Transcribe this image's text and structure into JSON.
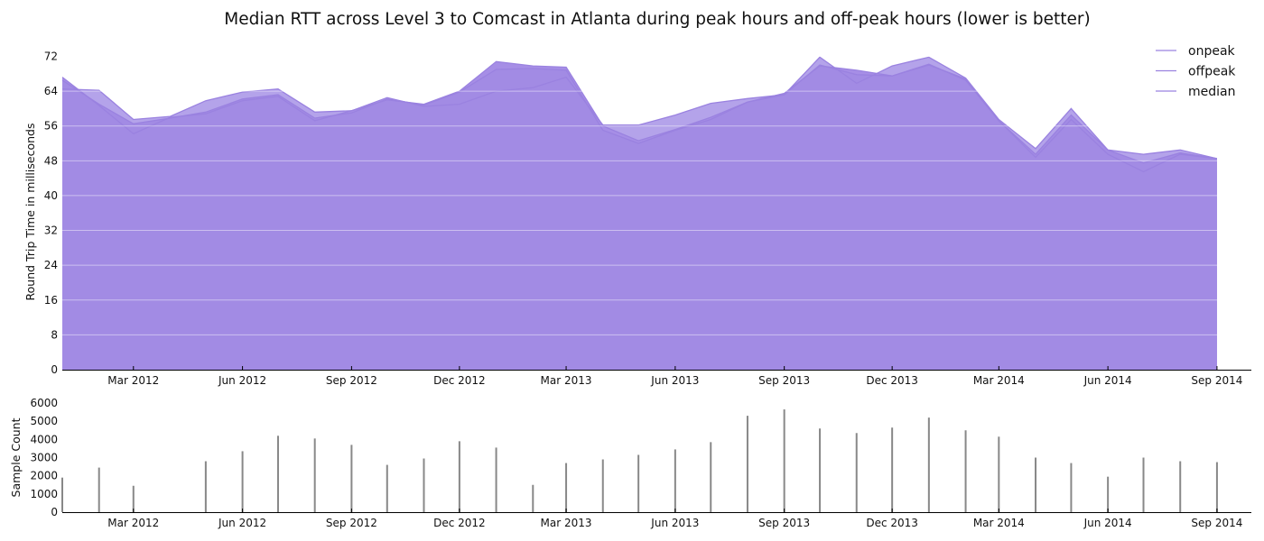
{
  "chart_data": [
    {
      "type": "area",
      "title": "Median RTT across Level 3 to Comcast in Atlanta during peak hours and off-peak hours (lower is better)",
      "ylabel": "Round Trip Time in milliseconds",
      "xlabel": "",
      "ylim": [
        0,
        75
      ],
      "yticks": [
        0,
        8,
        16,
        24,
        32,
        40,
        48,
        56,
        64,
        72
      ],
      "xlim": [
        "2012-01-01",
        "2014-09-30"
      ],
      "xticks": [
        {
          "date": "2012-03-01",
          "label": "Mar 2012"
        },
        {
          "date": "2012-06-01",
          "label": "Jun 2012"
        },
        {
          "date": "2012-09-01",
          "label": "Sep 2012"
        },
        {
          "date": "2012-12-01",
          "label": "Dec 2012"
        },
        {
          "date": "2013-03-01",
          "label": "Mar 2013"
        },
        {
          "date": "2013-06-01",
          "label": "Jun 2013"
        },
        {
          "date": "2013-09-01",
          "label": "Sep 2013"
        },
        {
          "date": "2013-12-01",
          "label": "Dec 2013"
        },
        {
          "date": "2014-03-01",
          "label": "Mar 2014"
        },
        {
          "date": "2014-06-01",
          "label": "Jun 2014"
        },
        {
          "date": "2014-09-01",
          "label": "Sep 2014"
        }
      ],
      "legend": {
        "position": "top-right",
        "entries": [
          "onpeak",
          "offpeak",
          "median"
        ]
      },
      "grid": {
        "y": true,
        "x": false
      },
      "colors": {
        "onpeak": "#b4a3ea",
        "offpeak": "#a68ee6",
        "median": "#a28be4",
        "line": "#9a82e0"
      },
      "x": [
        "2012-01-01",
        "2012-02-01",
        "2012-03-01",
        "2012-04-01",
        "2012-05-01",
        "2012-06-01",
        "2012-07-01",
        "2012-08-01",
        "2012-09-01",
        "2012-10-01",
        "2012-11-01",
        "2012-12-01",
        "2013-01-01",
        "2013-02-01",
        "2013-03-01",
        "2013-04-01",
        "2013-05-01",
        "2013-06-01",
        "2013-07-01",
        "2013-08-01",
        "2013-09-01",
        "2013-10-01",
        "2013-11-01",
        "2013-12-01",
        "2014-01-01",
        "2014-02-01",
        "2014-03-01",
        "2014-04-01",
        "2014-05-01",
        "2014-06-01",
        "2014-07-01",
        "2014-08-01",
        "2014-09-01"
      ],
      "series": [
        {
          "name": "onpeak",
          "values": [
            64.5,
            64.2,
            57.5,
            58.2,
            61.8,
            63.8,
            64.5,
            59.2,
            59.5,
            62.5,
            60.5,
            61.0,
            64.0,
            64.8,
            67.2,
            56.2,
            56.2,
            58.5,
            61.2,
            62.3,
            63.2,
            71.8,
            65.8,
            69.8,
            71.8,
            67.0,
            57.5,
            50.8,
            60.0,
            50.5,
            49.5,
            50.5,
            48.5
          ]
        },
        {
          "name": "offpeak",
          "values": [
            67.2,
            60.7,
            54.2,
            58.0,
            58.8,
            61.8,
            62.8,
            57.2,
            59.5,
            62.0,
            61.0,
            64.0,
            70.8,
            69.8,
            69.5,
            56.0,
            52.6,
            55.2,
            58.0,
            61.5,
            63.5,
            69.8,
            68.8,
            67.5,
            70.2,
            66.5,
            57.2,
            48.8,
            57.5,
            49.5,
            45.5,
            49.5,
            48.5
          ]
        },
        {
          "name": "median",
          "values": [
            66.5,
            61.0,
            56.5,
            57.8,
            59.2,
            62.2,
            63.2,
            57.8,
            59.0,
            62.2,
            60.8,
            63.8,
            69.0,
            69.2,
            68.8,
            55.0,
            52.0,
            55.0,
            57.5,
            61.5,
            63.2,
            70.0,
            67.8,
            67.5,
            70.0,
            66.8,
            57.2,
            49.5,
            58.5,
            50.5,
            47.5,
            49.8,
            48.5
          ]
        }
      ]
    },
    {
      "type": "bar",
      "ylabel": "Sample Count",
      "xlabel": "",
      "ylim": [
        0,
        6000
      ],
      "yticks": [
        0,
        1000,
        2000,
        3000,
        4000,
        5000,
        6000
      ],
      "xlim": [
        "2012-01-01",
        "2014-09-30"
      ],
      "xticks": [
        {
          "date": "2012-03-01",
          "label": "Mar 2012"
        },
        {
          "date": "2012-06-01",
          "label": "Jun 2012"
        },
        {
          "date": "2012-09-01",
          "label": "Sep 2012"
        },
        {
          "date": "2012-12-01",
          "label": "Dec 2012"
        },
        {
          "date": "2013-03-01",
          "label": "Mar 2013"
        },
        {
          "date": "2013-06-01",
          "label": "Jun 2013"
        },
        {
          "date": "2013-09-01",
          "label": "Sep 2013"
        },
        {
          "date": "2013-12-01",
          "label": "Dec 2013"
        },
        {
          "date": "2014-03-01",
          "label": "Mar 2014"
        },
        {
          "date": "2014-06-01",
          "label": "Jun 2014"
        },
        {
          "date": "2014-09-01",
          "label": "Sep 2014"
        }
      ],
      "colors": {
        "bar": "#888888"
      },
      "x": [
        "2012-01-01",
        "2012-02-01",
        "2012-03-01",
        "2012-05-01",
        "2012-06-01",
        "2012-07-01",
        "2012-08-01",
        "2012-09-01",
        "2012-10-01",
        "2012-11-01",
        "2012-12-01",
        "2013-01-01",
        "2013-02-01",
        "2013-03-01",
        "2013-04-01",
        "2013-05-01",
        "2013-06-01",
        "2013-07-01",
        "2013-08-01",
        "2013-09-01",
        "2013-10-01",
        "2013-11-01",
        "2013-12-01",
        "2014-01-01",
        "2014-02-01",
        "2014-03-01",
        "2014-04-01",
        "2014-05-01",
        "2014-06-01",
        "2014-07-01",
        "2014-08-01",
        "2014-09-01"
      ],
      "values": [
        1900,
        2450,
        1450,
        2800,
        3350,
        4200,
        4050,
        3700,
        2600,
        2950,
        3900,
        3550,
        1500,
        2700,
        2900,
        3150,
        3450,
        3850,
        5300,
        5650,
        4600,
        4350,
        4650,
        5200,
        4500,
        4150,
        3000,
        2700,
        1950,
        3000,
        2800,
        2750
      ]
    }
  ]
}
